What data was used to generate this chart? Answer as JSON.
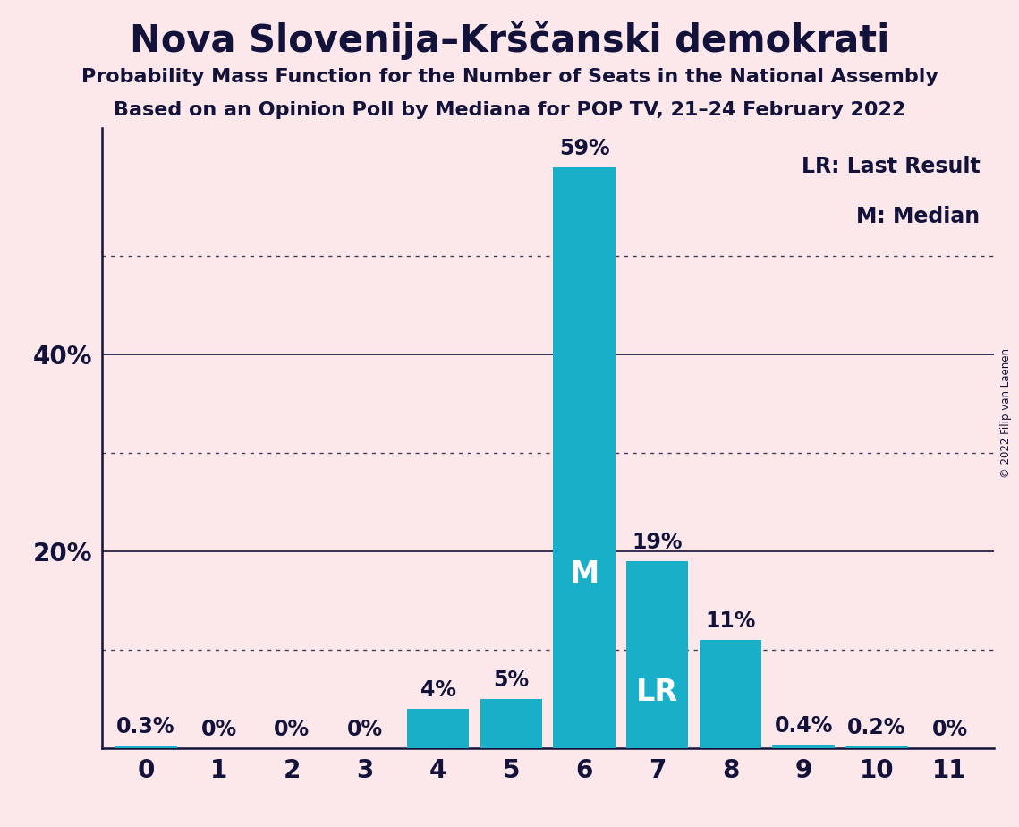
{
  "categories": [
    0,
    1,
    2,
    3,
    4,
    5,
    6,
    7,
    8,
    9,
    10,
    11
  ],
  "values": [
    0.3,
    0.0,
    0.0,
    0.0,
    4.0,
    5.0,
    59.0,
    19.0,
    11.0,
    0.4,
    0.2,
    0.0
  ],
  "bar_color": "#1aafc9",
  "background_color": "#fce8ea",
  "title": "Nova Slovenija–Krščanski demokrati",
  "subtitle1": "Probability Mass Function for the Number of Seats in the National Assembly",
  "subtitle2": "Based on an Opinion Poll by Mediana for POP TV, 21–24 February 2022",
  "copyright": "© 2022 Filip van Laenen",
  "legend_lr": "LR: Last Result",
  "legend_m": "M: Median",
  "median_bar": 6,
  "lr_bar": 7,
  "ylim": [
    0,
    63
  ],
  "solid_gridlines": [
    20,
    40
  ],
  "dotted_gridlines": [
    10,
    30,
    50
  ],
  "title_fontsize": 30,
  "subtitle_fontsize": 16,
  "tick_fontsize": 20,
  "bar_label_fontsize": 17,
  "bar_label_inside_fontsize": 24,
  "legend_fontsize": 17,
  "text_color": "#12123a",
  "bar_label_color_inside": "#ffffff",
  "bar_label_color_outside": "#12123a",
  "bar_label_outside_threshold": 8,
  "bar_labels": [
    "0.3%",
    "0%",
    "0%",
    "0%",
    "4%",
    "5%",
    "59%",
    "19%",
    "11%",
    "0.4%",
    "0.2%",
    "0%"
  ],
  "bar_inside_labels": {
    "6": "M",
    "7": "LR"
  }
}
